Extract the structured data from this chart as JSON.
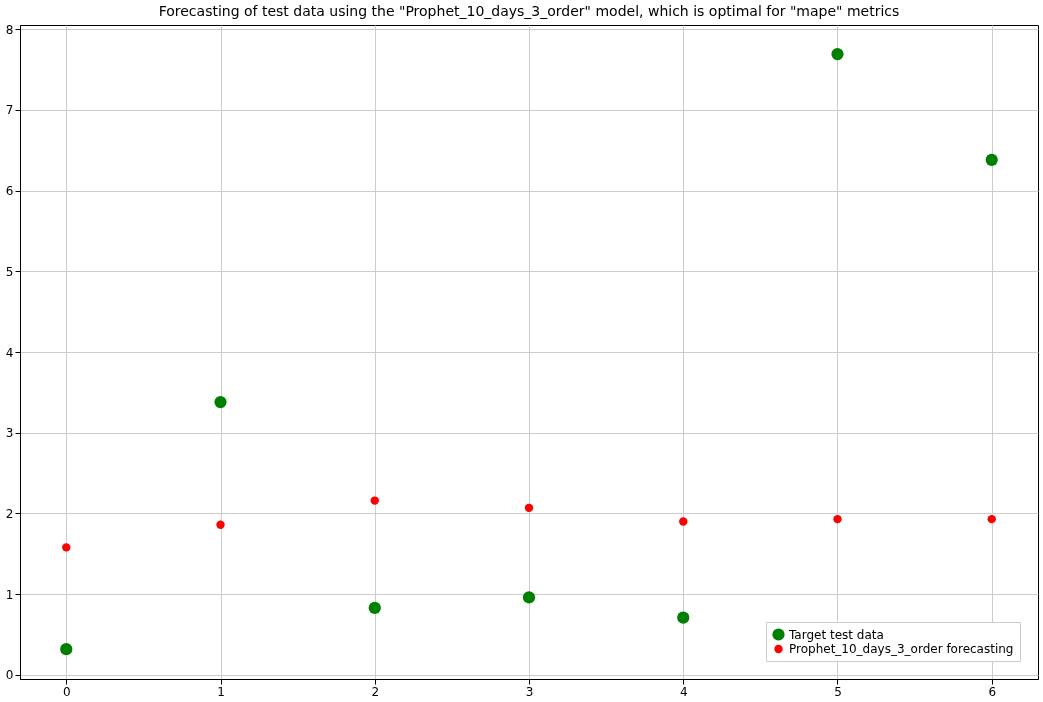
{
  "chart_data": {
    "type": "scatter",
    "title": "Forecasting of test data using the \"Prophet_10_days_3_order\" model, which is optimal for \"mape\" metrics",
    "x": [
      0,
      1,
      2,
      3,
      4,
      5,
      6
    ],
    "series": [
      {
        "name": "Target test data",
        "color": "#008000",
        "values": [
          0.32,
          3.38,
          0.83,
          0.96,
          0.71,
          7.69,
          6.38
        ]
      },
      {
        "name": "Prophet_10_days_3_order forecasting",
        "color": "#ff0000",
        "values": [
          1.58,
          1.86,
          2.16,
          2.07,
          1.9,
          1.93,
          1.93
        ]
      }
    ],
    "xlim": [
      -0.3,
      6.3
    ],
    "xticks": [
      0,
      1,
      2,
      3,
      4,
      5,
      6
    ],
    "ylim": [
      -0.05,
      8.05
    ],
    "yticks": [
      0,
      1,
      2,
      3,
      4,
      5,
      6,
      7,
      8
    ],
    "grid": true,
    "legend": "bottom right",
    "marker": "circle"
  }
}
